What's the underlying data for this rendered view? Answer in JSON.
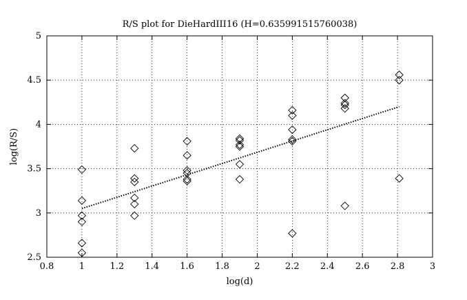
{
  "chart_data": {
    "type": "scatter",
    "title": "R/S plot for DieHardIII16 (H=0.635991515760038)",
    "xlabel": "log(d)",
    "ylabel": "log(R/S)",
    "xlim": [
      0.8,
      3
    ],
    "ylim": [
      2.5,
      5
    ],
    "xticks": [
      0.8,
      1,
      1.2,
      1.4,
      1.6,
      1.8,
      2,
      2.2,
      2.4,
      2.6,
      2.8,
      3
    ],
    "xtick_labels": [
      "0.8",
      "1",
      "1.2",
      "1.4",
      "1.6",
      "1.8",
      "2",
      "2.2",
      "2.4",
      "2.6",
      "2.8",
      "3"
    ],
    "yticks": [
      2.5,
      3,
      3.5,
      4,
      4.5,
      5
    ],
    "ytick_labels": [
      "2.5",
      "3",
      "3.5",
      "4",
      "4.5",
      "5"
    ],
    "grid": true,
    "grid_style": "dotted",
    "marker": "diamond",
    "points": [
      {
        "x": 1,
        "y": 3.49
      },
      {
        "x": 1,
        "y": 3.14
      },
      {
        "x": 1,
        "y": 2.97
      },
      {
        "x": 1,
        "y": 2.9
      },
      {
        "x": 1,
        "y": 2.66
      },
      {
        "x": 1,
        "y": 2.55
      },
      {
        "x": 1.3,
        "y": 3.73
      },
      {
        "x": 1.3,
        "y": 3.39
      },
      {
        "x": 1.3,
        "y": 3.35
      },
      {
        "x": 1.3,
        "y": 3.17
      },
      {
        "x": 1.3,
        "y": 3.1
      },
      {
        "x": 1.3,
        "y": 2.97
      },
      {
        "x": 1.6,
        "y": 3.81
      },
      {
        "x": 1.6,
        "y": 3.65
      },
      {
        "x": 1.6,
        "y": 3.48
      },
      {
        "x": 1.6,
        "y": 3.45
      },
      {
        "x": 1.6,
        "y": 3.38
      },
      {
        "x": 1.6,
        "y": 3.36
      },
      {
        "x": 1.9,
        "y": 3.84
      },
      {
        "x": 1.9,
        "y": 3.82
      },
      {
        "x": 1.9,
        "y": 3.77
      },
      {
        "x": 1.9,
        "y": 3.75
      },
      {
        "x": 1.9,
        "y": 3.55
      },
      {
        "x": 1.9,
        "y": 3.38
      },
      {
        "x": 2.2,
        "y": 4.16
      },
      {
        "x": 2.2,
        "y": 4.1
      },
      {
        "x": 2.2,
        "y": 3.94
      },
      {
        "x": 2.2,
        "y": 3.83
      },
      {
        "x": 2.2,
        "y": 3.81
      },
      {
        "x": 2.2,
        "y": 2.77
      },
      {
        "x": 2.5,
        "y": 4.3
      },
      {
        "x": 2.5,
        "y": 4.24
      },
      {
        "x": 2.5,
        "y": 4.22
      },
      {
        "x": 2.5,
        "y": 4.18
      },
      {
        "x": 2.5,
        "y": 3.08
      },
      {
        "x": 2.81,
        "y": 4.56
      },
      {
        "x": 2.81,
        "y": 4.5
      },
      {
        "x": 2.81,
        "y": 3.39
      }
    ],
    "fit_line": {
      "style": "dotted",
      "x": [
        1,
        2.81
      ],
      "y": [
        3.05,
        4.2
      ]
    }
  }
}
